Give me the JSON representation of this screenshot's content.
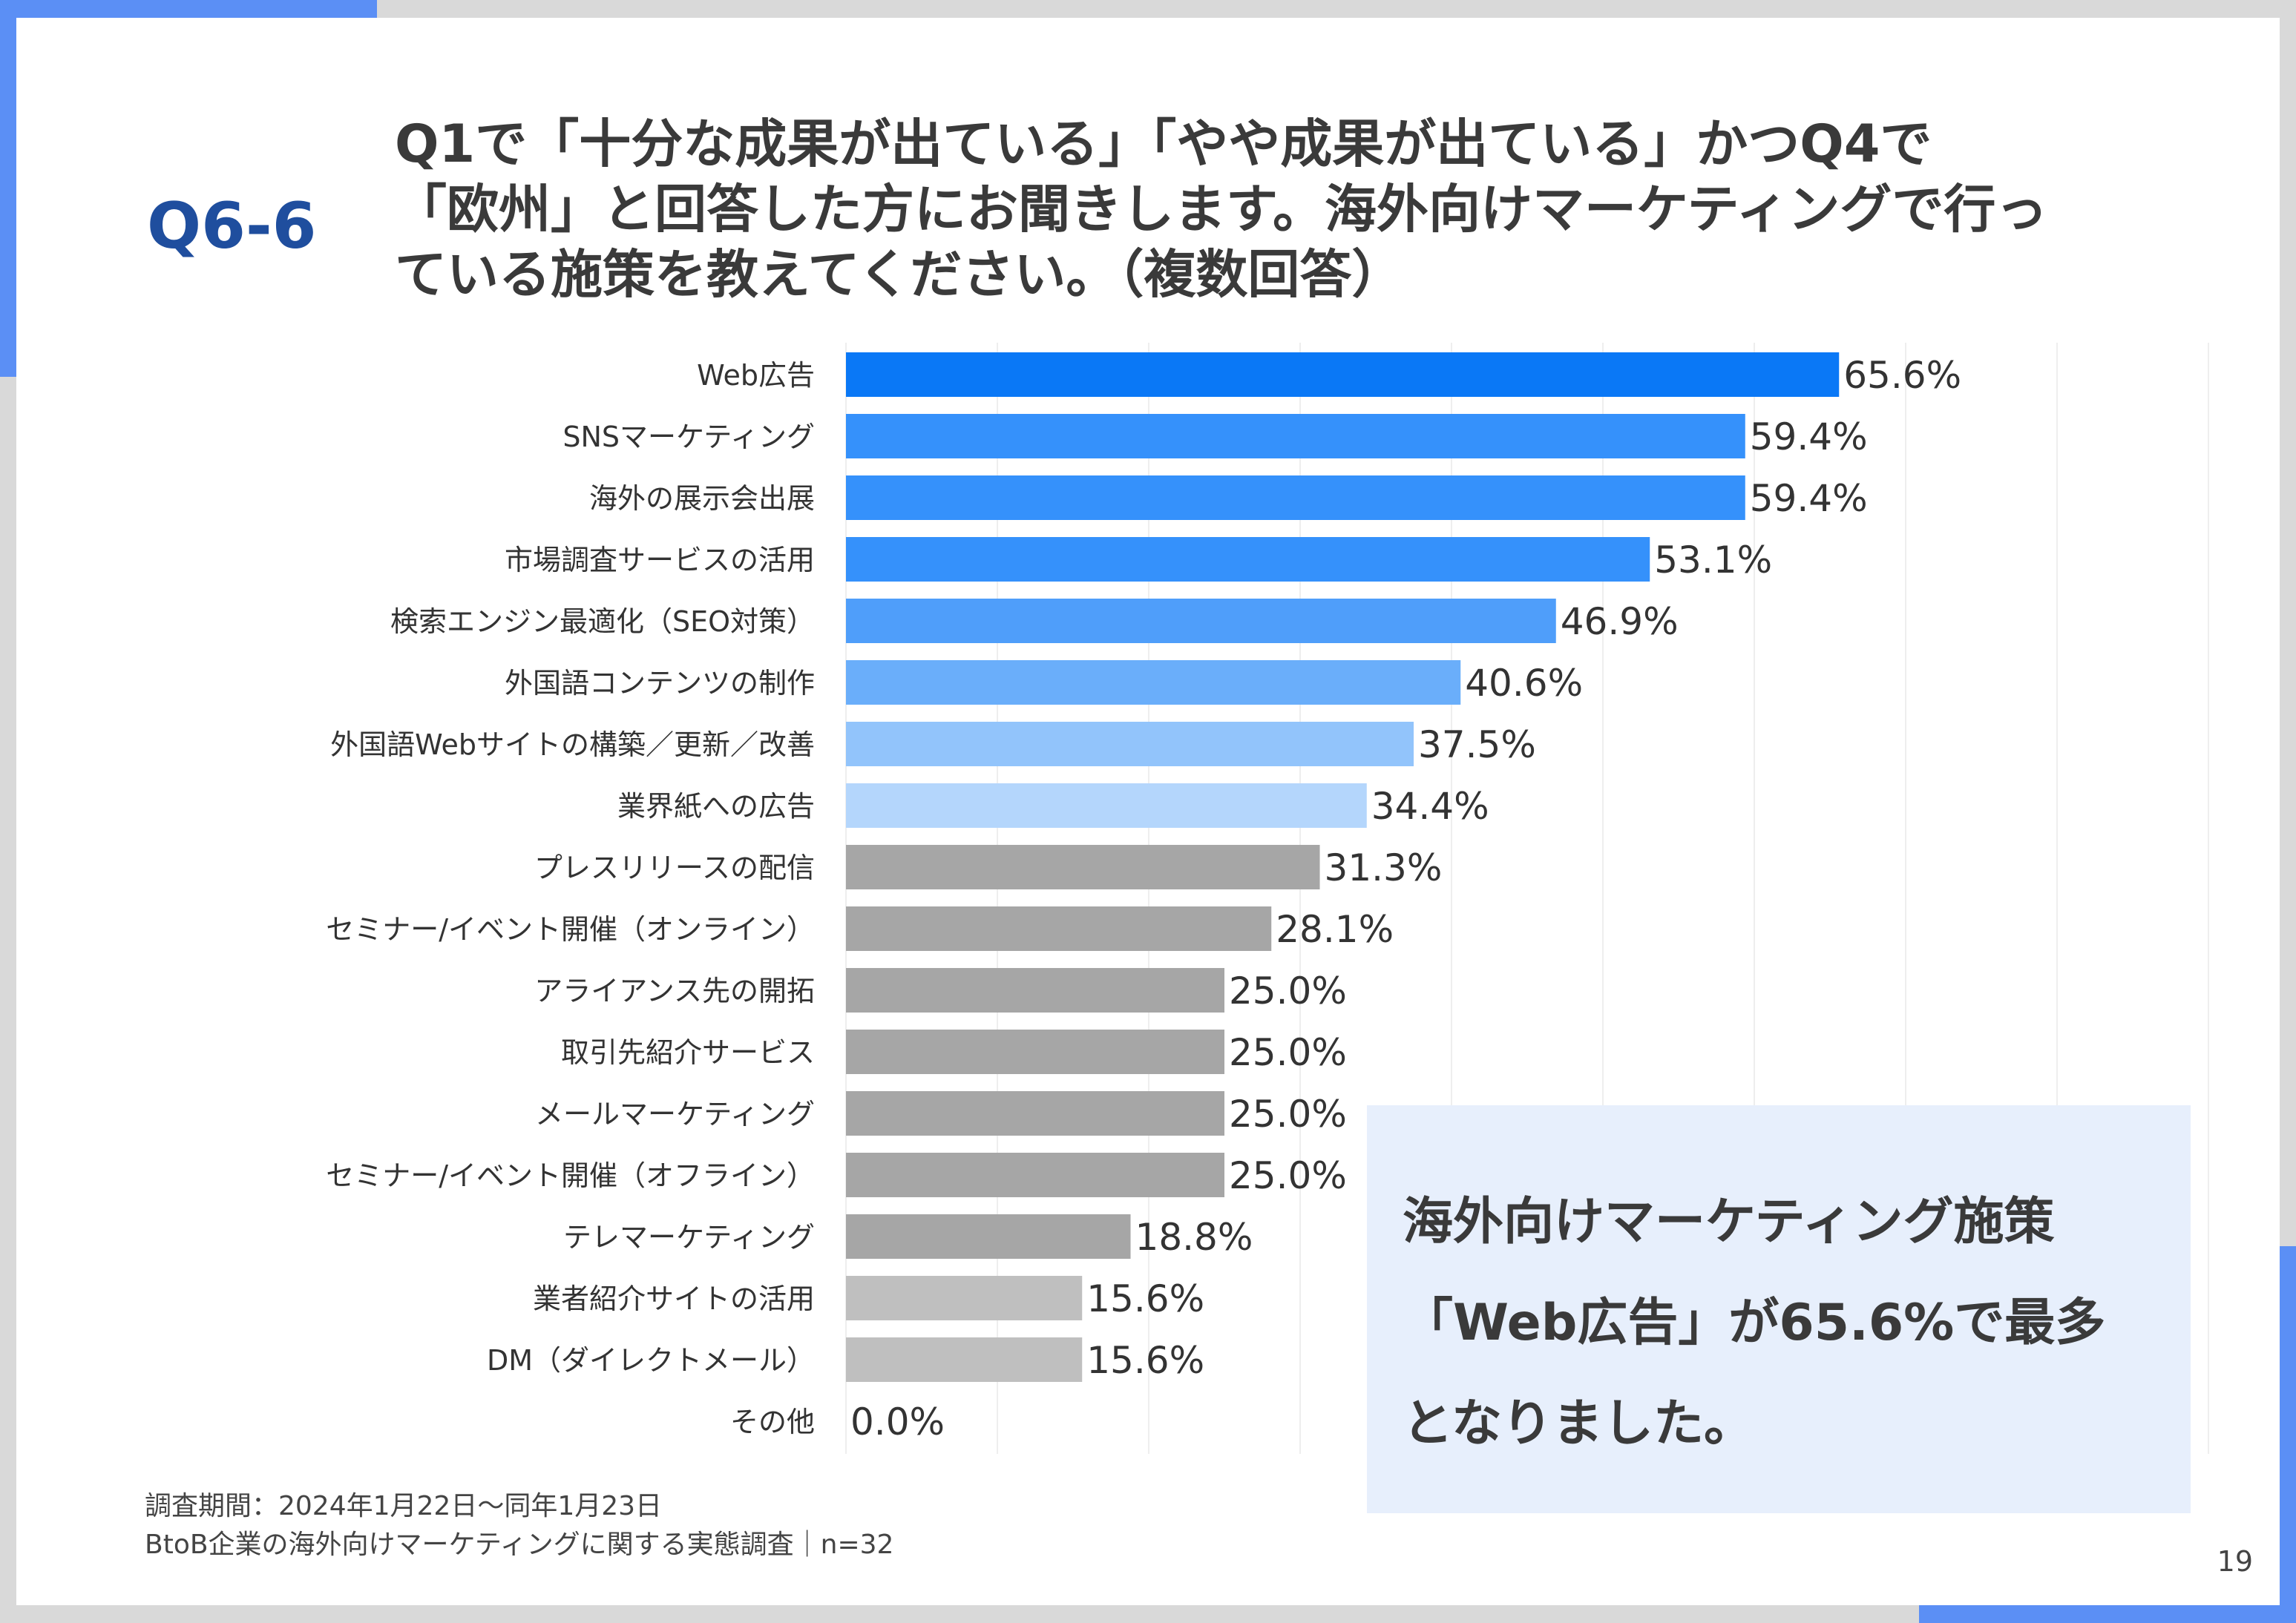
{
  "slide": {
    "question_number": "Q6-6",
    "question_lines": [
      "Q1で「十分な成果が出ている」「やや成果が出ている」かつQ4で",
      "「欧州」と回答した方にお聞きします。海外向けマーケティングで行っ",
      "ている施策を教えてください。（複数回答）"
    ],
    "callout_lines": [
      "海外向けマーケティング施策",
      "「Web広告」が65.6%で最多",
      "となりました。"
    ],
    "footnote_lines": [
      "調査期間：2024年1月22日～同年1月23日",
      "BtoB企業の海外向けマーケティングに関する実態調査｜n=32"
    ],
    "page_number": "19"
  },
  "chart_data": {
    "type": "bar",
    "orientation": "horizontal",
    "categories": [
      "Web広告",
      "SNSマーケティング",
      "海外の展示会出展",
      "市場調査サービスの活用",
      "検索エンジン最適化（SEO対策）",
      "外国語コンテンツの制作",
      "外国語Webサイトの構築／更新／改善",
      "業界紙への広告",
      "プレスリリースの配信",
      "セミナー/イベント開催（オンライン）",
      "アライアンス先の開拓",
      "取引先紹介サービス",
      "メールマーケティング",
      "セミナー/イベント開催（オフライン）",
      "テレマーケティング",
      "業者紹介サイトの活用",
      "DM（ダイレクトメール）",
      "その他"
    ],
    "values": [
      65.6,
      59.4,
      59.4,
      53.1,
      46.9,
      40.6,
      37.5,
      34.4,
      31.3,
      28.1,
      25.0,
      25.0,
      25.0,
      25.0,
      18.8,
      15.6,
      15.6,
      0.0
    ],
    "value_labels": [
      "65.6%",
      "59.4%",
      "59.4%",
      "53.1%",
      "46.9%",
      "40.6%",
      "37.5%",
      "34.4%",
      "31.3%",
      "28.1%",
      "25.0%",
      "25.0%",
      "25.0%",
      "25.0%",
      "18.8%",
      "15.6%",
      "15.6%",
      "0.0%"
    ],
    "bar_colors": [
      "#0a78f6",
      "#3591fb",
      "#3591fb",
      "#3591fb",
      "#4f9efa",
      "#6aaefa",
      "#92c4fb",
      "#b4d6fc",
      "#a6a6a6",
      "#a6a6a6",
      "#a6a6a6",
      "#a6a6a6",
      "#a6a6a6",
      "#a6a6a6",
      "#a6a6a6",
      "#bfbfbf",
      "#bfbfbf",
      "#bfbfbf"
    ],
    "xlim": [
      0,
      100
    ],
    "grid": true,
    "value_unit": "%"
  }
}
